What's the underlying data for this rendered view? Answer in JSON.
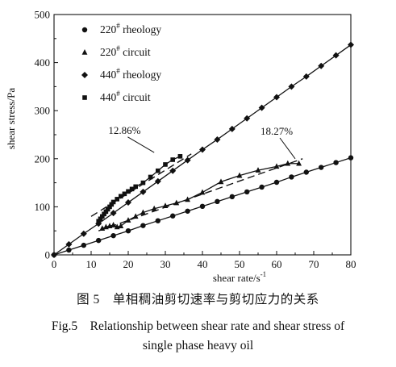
{
  "chart_data": {
    "type": "scatter",
    "xlabel": "shear rate/s",
    "xlabel_sup": "-1",
    "ylabel": "shear stress/Pa",
    "xlim": [
      0,
      80
    ],
    "ylim": [
      0,
      500
    ],
    "xticks": [
      0,
      10,
      20,
      30,
      40,
      50,
      60,
      70,
      80
    ],
    "yticks": [
      0,
      100,
      200,
      300,
      400,
      500
    ],
    "grid": false,
    "legend_position": "top-left",
    "series": [
      {
        "name": "220",
        "sup": "#",
        "suffix": " rheology",
        "marker": "circle",
        "style": "line-with-markers",
        "x": [
          0,
          4,
          8,
          12,
          16,
          20,
          24,
          28,
          32,
          36,
          40,
          44,
          48,
          52,
          56,
          60,
          64,
          68,
          72,
          76,
          80
        ],
        "y": [
          0,
          10,
          20,
          30,
          40,
          50,
          61,
          71,
          81,
          91,
          101,
          111,
          121,
          131,
          141,
          151,
          162,
          172,
          182,
          192,
          202
        ]
      },
      {
        "name": "220",
        "sup": "#",
        "suffix": " circuit",
        "marker": "triangle",
        "style": "line-with-markers",
        "x": [
          13,
          14,
          15,
          16,
          17,
          18,
          20,
          22,
          24,
          27,
          30,
          33,
          36,
          40,
          45,
          50,
          55,
          60,
          63,
          66
        ],
        "y": [
          55,
          58,
          60,
          62,
          58,
          60,
          72,
          80,
          88,
          96,
          102,
          108,
          115,
          130,
          152,
          165,
          176,
          184,
          190,
          190
        ]
      },
      {
        "name": "440",
        "sup": "#",
        "suffix": " rheology",
        "marker": "diamond",
        "style": "line-with-markers",
        "x": [
          0,
          4,
          8,
          12,
          16,
          20,
          24,
          28,
          32,
          36,
          40,
          44,
          48,
          52,
          56,
          60,
          64,
          68,
          72,
          76,
          80
        ],
        "y": [
          0,
          22,
          44,
          65,
          87,
          109,
          131,
          153,
          175,
          197,
          219,
          240,
          262,
          284,
          306,
          328,
          350,
          371,
          393,
          415,
          437
        ]
      },
      {
        "name": "440",
        "sup": "#",
        "suffix": " circuit",
        "marker": "square",
        "style": "line-with-markers",
        "x": [
          12,
          12.5,
          13,
          13.5,
          14,
          14.5,
          15,
          15.5,
          16,
          17,
          18,
          19,
          20,
          21,
          22,
          24,
          26,
          28,
          30,
          32,
          34
        ],
        "y": [
          70,
          75,
          80,
          85,
          90,
          95,
          100,
          105,
          110,
          116,
          122,
          127,
          132,
          137,
          142,
          150,
          162,
          175,
          188,
          198,
          205
        ]
      },
      {
        "name": "",
        "style": "dashed",
        "x": [
          10,
          37
        ],
        "y": [
          80,
          210
        ]
      },
      {
        "name": "",
        "style": "dashed",
        "x": [
          12,
          67
        ],
        "y": [
          50,
          200
        ]
      }
    ],
    "annotations": [
      {
        "text": "12.86%",
        "x": 19,
        "y": 252,
        "arrow_to": [
          27,
          213
        ]
      },
      {
        "text": "18.27%",
        "x": 60,
        "y": 250,
        "arrow_to": [
          65,
          200
        ]
      }
    ]
  },
  "caption": {
    "cn": "图 5　单相稠油剪切速率与剪切应力的关系",
    "en_line1": "Fig.5　Relationship between shear rate and shear stress of",
    "en_line2": "single phase heavy oil"
  }
}
